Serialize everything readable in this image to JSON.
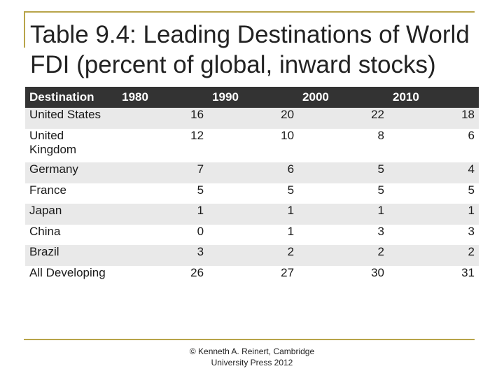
{
  "title": "Table 9.4: Leading Destinations of World FDI (percent of global, inward stocks)",
  "table": {
    "headers": [
      "Destination",
      "1980",
      "1990",
      "2000",
      "2010"
    ],
    "rows": [
      {
        "name": "United States",
        "values": [
          "16",
          "20",
          "22",
          "18"
        ]
      },
      {
        "name": "United Kingdom",
        "values": [
          "12",
          "10",
          "8",
          "6"
        ]
      },
      {
        "name": "Germany",
        "values": [
          "7",
          "6",
          "5",
          "4"
        ]
      },
      {
        "name": "France",
        "values": [
          "5",
          "5",
          "5",
          "5"
        ]
      },
      {
        "name": "Japan",
        "values": [
          "1",
          "1",
          "1",
          "1"
        ]
      },
      {
        "name": "China",
        "values": [
          "0",
          "1",
          "3",
          "3"
        ]
      },
      {
        "name": "Brazil",
        "values": [
          "3",
          "2",
          "2",
          "2"
        ]
      },
      {
        "name": "All Developing",
        "values": [
          "26",
          "27",
          "30",
          "31"
        ]
      }
    ]
  },
  "footer": {
    "line1": "© Kenneth A. Reinert, Cambridge",
    "line2": "University Press 2012"
  },
  "colors": {
    "accent_rule": "#b8a44a",
    "header_fill": "#333333",
    "stripe_fill": "#e9e9e9"
  }
}
